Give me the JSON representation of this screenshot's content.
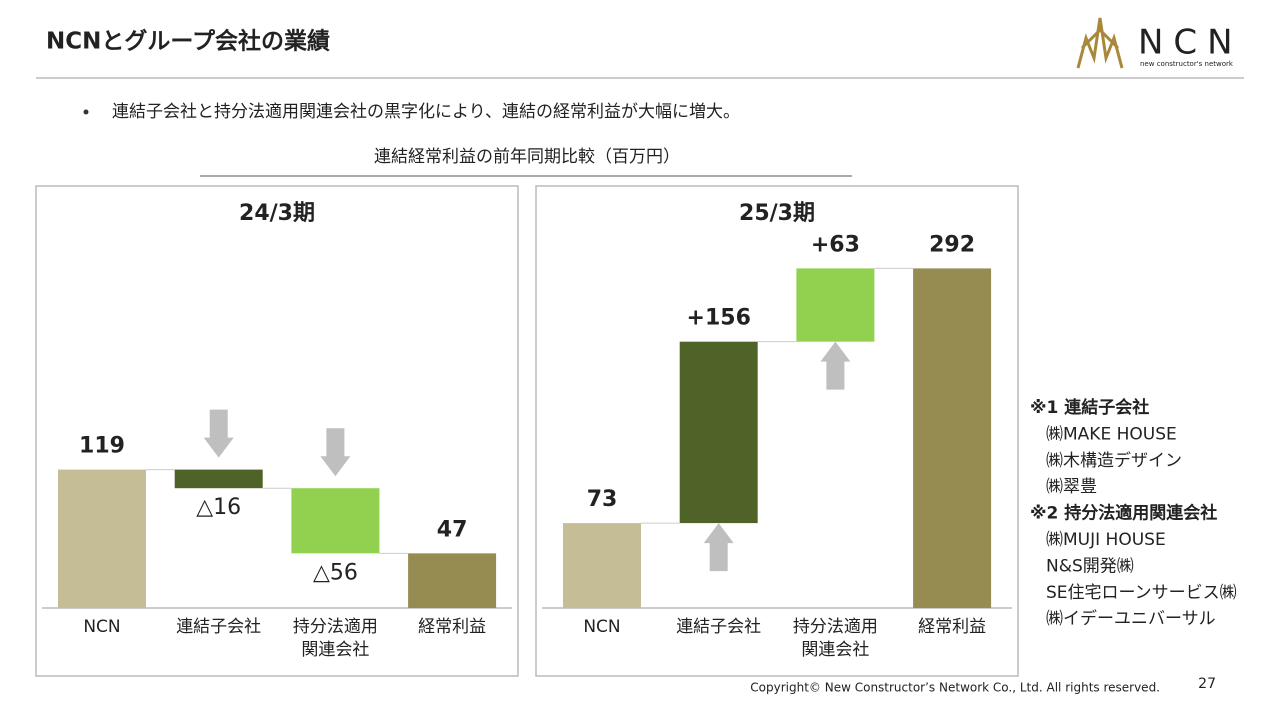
{
  "header": {
    "title": "NCNとグループ会社の業績",
    "logo": "NCN",
    "logo_tagline": "new constructor's network"
  },
  "bullet": "連結子会社と持分法適用関連会社の黒字化により、連結の経常利益が大幅に増大。",
  "section_title": "連結経常利益の前年同期比較（百万円）",
  "chart_data": [
    {
      "type": "waterfall",
      "title": "24/3期",
      "categories": [
        "NCN",
        "連結子会社",
        "持分法適用\n関連会社",
        "経常利益"
      ],
      "values": [
        119,
        -16,
        -56,
        47
      ],
      "value_labels": [
        "119",
        "△16",
        "△56",
        "47"
      ],
      "colors": [
        "#c5bd96",
        "#4f6228",
        "#92d050",
        "#968c52"
      ]
    },
    {
      "type": "waterfall",
      "title": "25/3期",
      "categories": [
        "NCN",
        "連結子会社",
        "持分法適用\n関連会社",
        "経常利益"
      ],
      "values": [
        73,
        156,
        63,
        292
      ],
      "value_labels": [
        "73",
        "+156",
        "+63",
        "292"
      ],
      "colors": [
        "#c5bd96",
        "#4f6228",
        "#92d050",
        "#968c52"
      ]
    }
  ],
  "notes": [
    "※1 連結子会社",
    "㈱MAKE HOUSE",
    "㈱木構造デザイン",
    "㈱翠豊",
    "※2 持分法適用関連会社",
    "㈱MUJI HOUSE",
    "N&S開発㈱",
    "SE住宅ローンサービス㈱",
    "㈱イデーユニバーサル"
  ],
  "footer": {
    "copyright": "Copyright© New Constructor’s Network Co., Ltd. All rights reserved.",
    "page": "27"
  }
}
